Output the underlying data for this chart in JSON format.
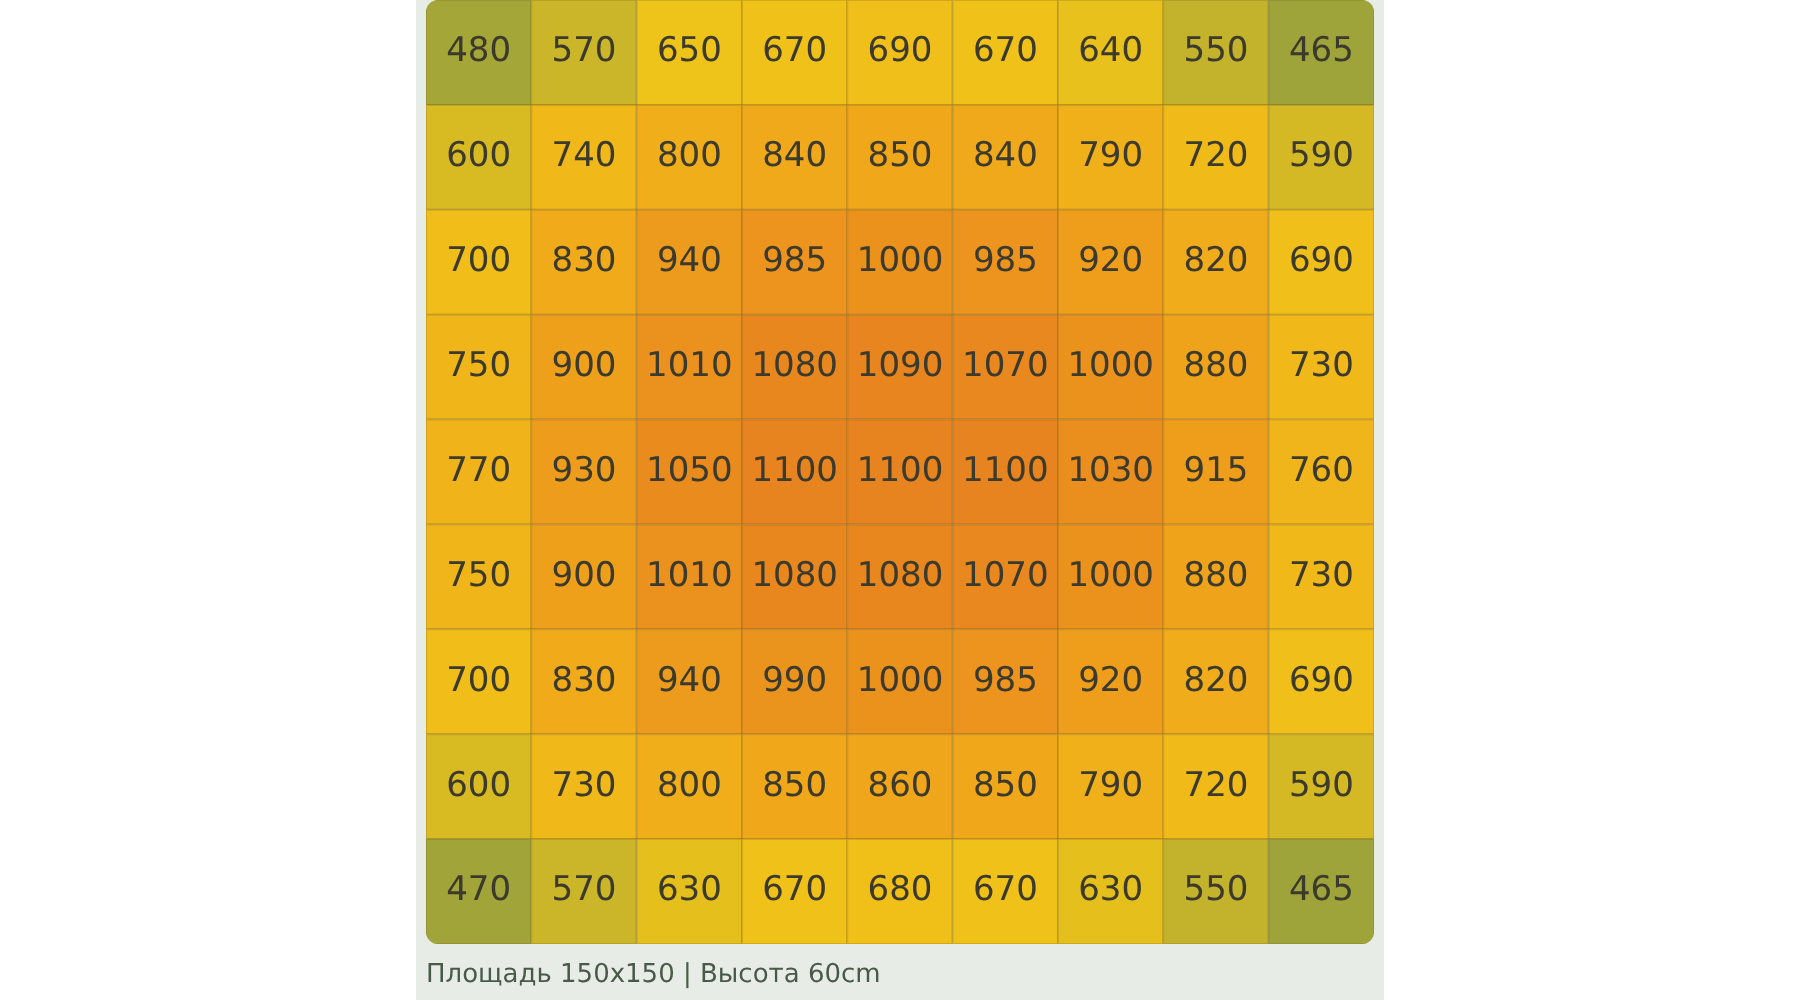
{
  "chart_data": {
    "type": "heatmap",
    "categories": [
      null,
      null,
      null,
      null,
      null,
      null,
      null,
      null,
      null
    ],
    "y_categories": [
      null,
      null,
      null,
      null,
      null,
      null,
      null,
      null,
      null
    ],
    "cells": [
      [
        480,
        570,
        650,
        670,
        690,
        670,
        640,
        550,
        465
      ],
      [
        600,
        740,
        800,
        840,
        850,
        840,
        790,
        720,
        590
      ],
      [
        700,
        830,
        940,
        985,
        1000,
        985,
        920,
        820,
        690
      ],
      [
        750,
        900,
        1010,
        1080,
        1090,
        1070,
        1000,
        880,
        730
      ],
      [
        770,
        930,
        1050,
        1100,
        1100,
        1100,
        1030,
        915,
        760
      ],
      [
        750,
        900,
        1010,
        1080,
        1080,
        1070,
        1000,
        880,
        730
      ],
      [
        700,
        830,
        940,
        990,
        1000,
        985,
        920,
        820,
        690
      ],
      [
        600,
        730,
        800,
        850,
        860,
        850,
        790,
        720,
        590
      ],
      [
        470,
        570,
        630,
        670,
        680,
        670,
        630,
        550,
        465
      ]
    ],
    "data_labels": true,
    "annotations": [
      "Площадь 150x150 | Высота 60cm"
    ]
  }
}
